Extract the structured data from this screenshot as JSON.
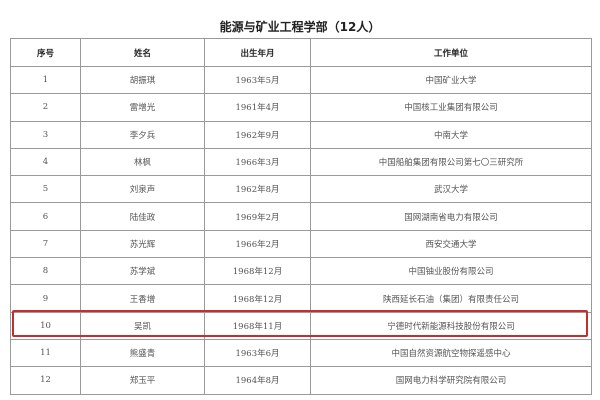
{
  "title": "能源与矿业工程学部（12人）",
  "columns": [
    "序号",
    "姓名",
    "出生年月",
    "工作单位"
  ],
  "rows": [
    {
      "no": "1",
      "name": "胡振琪",
      "born": "1963年5月",
      "org": "中国矿业大学"
    },
    {
      "no": "2",
      "name": "雷增光",
      "born": "1961年4月",
      "org": "中国核工业集团有限公司"
    },
    {
      "no": "3",
      "name": "李夕兵",
      "born": "1962年9月",
      "org": "中南大学"
    },
    {
      "no": "4",
      "name": "林枫",
      "born": "1966年3月",
      "org": "中国船舶集团有限公司第七〇三研究所"
    },
    {
      "no": "5",
      "name": "刘泉声",
      "born": "1962年8月",
      "org": "武汉大学"
    },
    {
      "no": "6",
      "name": "陆佳政",
      "born": "1969年2月",
      "org": "国网湖南省电力有限公司"
    },
    {
      "no": "7",
      "name": "苏光辉",
      "born": "1966年2月",
      "org": "西安交通大学"
    },
    {
      "no": "8",
      "name": "苏学斌",
      "born": "1968年12月",
      "org": "中国铀业股份有限公司"
    },
    {
      "no": "9",
      "name": "王香增",
      "born": "1968年12月",
      "org": "陕西延长石油（集团）有限责任公司"
    },
    {
      "no": "10",
      "name": "吴凯",
      "born": "1968年11月",
      "org": "宁德时代新能源科技股份有限公司"
    },
    {
      "no": "11",
      "name": "熊盛青",
      "born": "1963年6月",
      "org": "中国自然资源航空物探遥感中心"
    },
    {
      "no": "12",
      "name": "郑玉平",
      "born": "1964年8月",
      "org": "国网电力科学研究院有限公司"
    }
  ],
  "highlight": {
    "row_no": "10",
    "color": "#c0302f"
  }
}
